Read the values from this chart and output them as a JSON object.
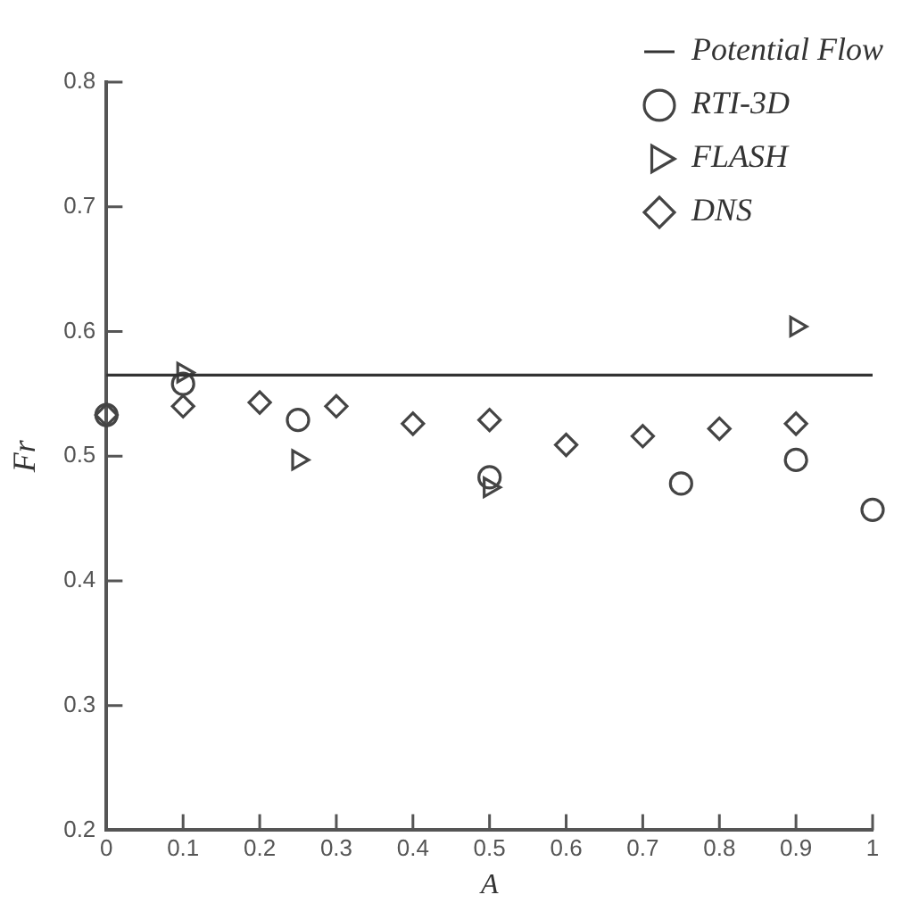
{
  "chart_data": {
    "type": "scatter",
    "xlabel": "A",
    "ylabel": "Fr",
    "xlim": [
      0,
      1
    ],
    "ylim": [
      0.2,
      0.8
    ],
    "xticks": [
      0,
      0.1,
      0.2,
      0.3,
      0.4,
      0.5,
      0.6,
      0.7,
      0.8,
      0.9,
      1
    ],
    "yticks": [
      0.2,
      0.3,
      0.4,
      0.5,
      0.6,
      0.7,
      0.8
    ],
    "grid": false,
    "legend": "top right",
    "series": [
      {
        "name": "Potential Flow",
        "type": "line",
        "color": "#333333",
        "x": [
          0,
          1
        ],
        "values": [
          0.565,
          0.565
        ],
        "marker": "none"
      },
      {
        "name": "RTI-3D",
        "color": "#444444",
        "marker": "circle",
        "x": [
          0,
          0.1,
          0.25,
          0.5,
          0.75,
          0.9,
          1
        ],
        "values": [
          0.533,
          0.558,
          0.529,
          0.483,
          0.478,
          0.497,
          0.457
        ]
      },
      {
        "name": "FLASH",
        "color": "#444444",
        "marker": "triangle",
        "x": [
          0.1,
          0.25,
          0.5,
          0.9
        ],
        "values": [
          0.567,
          0.497,
          0.475,
          0.604
        ]
      },
      {
        "name": "DNS",
        "color": "#444444",
        "marker": "diamond",
        "x": [
          0,
          0.1,
          0.2,
          0.3,
          0.4,
          0.5,
          0.6,
          0.7,
          0.8,
          0.9
        ],
        "values": [
          0.533,
          0.54,
          0.543,
          0.54,
          0.526,
          0.529,
          0.509,
          0.516,
          0.522,
          0.526
        ]
      }
    ]
  }
}
